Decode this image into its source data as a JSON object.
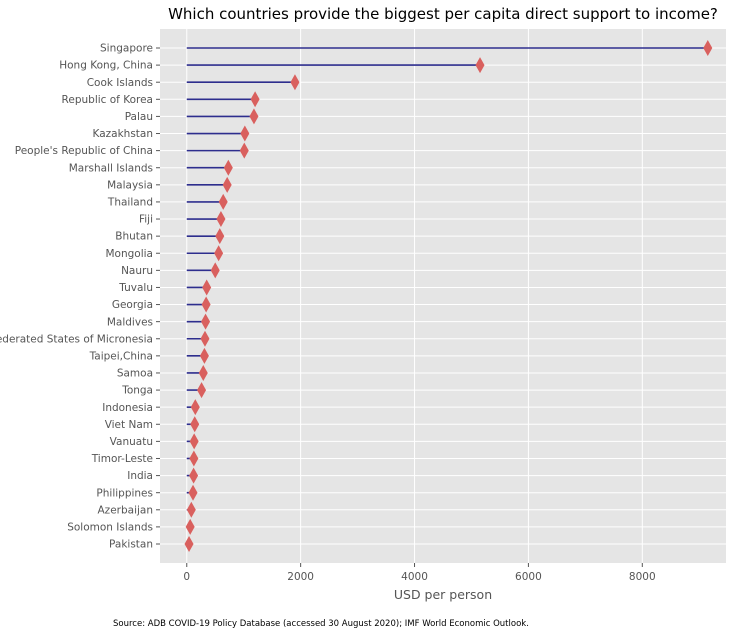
{
  "chart_data": {
    "type": "lollipop",
    "title": "Which countries provide the biggest per capita direct support to income?",
    "xlabel": "USD per person",
    "ylabel": "",
    "xlim": [
      -470,
      9470
    ],
    "xticks": [
      0,
      2000,
      4000,
      6000,
      8000
    ],
    "grid": true,
    "categories": [
      "Singapore",
      "Hong Kong, China",
      "Cook Islands",
      "Republic of Korea",
      "Palau",
      "Kazakhstan",
      "People's Republic of China",
      "Marshall Islands",
      "Malaysia",
      "Thailand",
      "Fiji",
      "Bhutan",
      "Mongolia",
      "Nauru",
      "Tuvalu",
      "Georgia",
      "Maldives",
      "Federated States of Micronesia",
      "Taipei,China",
      "Samoa",
      "Tonga",
      "Indonesia",
      "Viet Nam",
      "Vanuatu",
      "Timor-Leste",
      "India",
      "Philippines",
      "Azerbaijan",
      "Solomon Islands",
      "Pakistan"
    ],
    "values": [
      9150,
      5150,
      1900,
      1200,
      1180,
      1020,
      1010,
      730,
      710,
      640,
      600,
      580,
      560,
      500,
      350,
      340,
      330,
      320,
      310,
      290,
      260,
      150,
      140,
      130,
      125,
      120,
      110,
      80,
      60,
      40
    ]
  },
  "colors": {
    "background": "#e5e5e5",
    "grid": "#ffffff",
    "stem": "#2e2e8e",
    "marker": "#d9605e"
  },
  "source_note": "Source: ADB COVID-19 Policy Database (accessed 30 August 2020); IMF World Economic Outlook."
}
